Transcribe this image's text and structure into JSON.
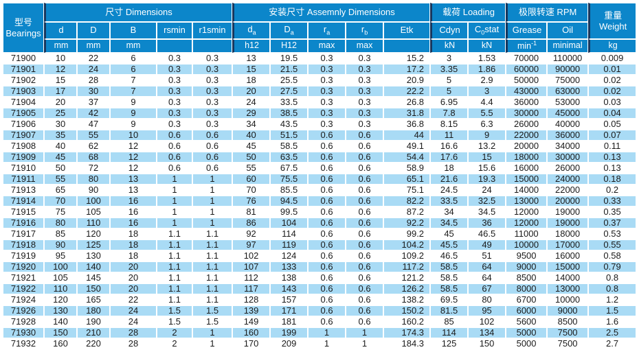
{
  "colors": {
    "header_blue": "#0c86ca",
    "row_alt_blue": "#a9dbf5",
    "section_divider": "#17375e",
    "text_color": "#1a1a1a"
  },
  "header": {
    "bearings_group": {
      "zh": "型号",
      "en": "Bearings"
    },
    "groups": {
      "dimensions": "尺寸 Dimensions",
      "assembly": "安装尺寸 Assemnly Dimensions",
      "loading": "载荷 Loading",
      "rpm": "极限转速 RPM",
      "weight_zh": "重量",
      "weight_en": "Weight"
    },
    "columns": [
      {
        "key": "d",
        "label": "d",
        "unit": "mm"
      },
      {
        "key": "D",
        "label": "D",
        "unit": "mm"
      },
      {
        "key": "B",
        "label": "B",
        "unit": "mm"
      },
      {
        "key": "rsmin",
        "label": "rsmin",
        "unit": ""
      },
      {
        "key": "r1smin",
        "label": "r1smin",
        "unit": ""
      },
      {
        "key": "da",
        "label": "d_{a}",
        "unit": "h12"
      },
      {
        "key": "Da",
        "label": "D_{a}",
        "unit": "H12"
      },
      {
        "key": "ra",
        "label": "r_{a}",
        "unit": "max"
      },
      {
        "key": "rb",
        "label": "r_{b}",
        "unit": "max"
      },
      {
        "key": "Etk",
        "label": "Etk",
        "unit": ""
      },
      {
        "key": "Cdyn",
        "label": "Cdyn",
        "unit": "kN"
      },
      {
        "key": "C0stat",
        "label": "C_{0}stat",
        "unit": "kN"
      },
      {
        "key": "Grease",
        "label": "Grease",
        "unit": "min^{-1}"
      },
      {
        "key": "Oil",
        "label": "Oil",
        "unit": "minimal"
      },
      {
        "key": "Weight",
        "label": "",
        "unit": "kg"
      }
    ]
  },
  "table": {
    "rows": [
      [
        "71900",
        10,
        22,
        6,
        0.3,
        0.3,
        13,
        19.5,
        0.3,
        0.3,
        15.2,
        3,
        1.53,
        70000,
        110000,
        0.009
      ],
      [
        "71901",
        12,
        24,
        6,
        0.3,
        0.3,
        15,
        21.5,
        0.3,
        0.3,
        17.2,
        3.35,
        1.86,
        60000,
        90000,
        0.01
      ],
      [
        "71902",
        15,
        28,
        7,
        0.3,
        0.3,
        18,
        25.5,
        0.3,
        0.3,
        20.9,
        5,
        2.9,
        50000,
        75000,
        0.02
      ],
      [
        "71903",
        17,
        30,
        7,
        0.3,
        0.3,
        20,
        27.5,
        0.3,
        0.3,
        22.2,
        5,
        3,
        43000,
        63000,
        0.02
      ],
      [
        "71904",
        20,
        37,
        9,
        0.3,
        0.3,
        24,
        33.5,
        0.3,
        0.3,
        26.8,
        6.95,
        4.4,
        36000,
        53000,
        0.03
      ],
      [
        "71905",
        25,
        42,
        9,
        0.3,
        0.3,
        29,
        38.5,
        0.3,
        0.3,
        31.8,
        7.8,
        5.5,
        30000,
        45000,
        0.04
      ],
      [
        "71906",
        30,
        47,
        9,
        0.3,
        0.3,
        34,
        43.5,
        0.3,
        0.3,
        36.8,
        8.15,
        6.3,
        26000,
        40000,
        0.05
      ],
      [
        "71907",
        35,
        55,
        10,
        0.6,
        0.6,
        40,
        51.5,
        0.6,
        0.6,
        44,
        11,
        9,
        22000,
        36000,
        0.07
      ],
      [
        "71908",
        40,
        62,
        12,
        0.6,
        0.6,
        45,
        58.5,
        0.6,
        0.6,
        49.1,
        16.6,
        13.2,
        20000,
        34000,
        0.11
      ],
      [
        "71909",
        45,
        68,
        12,
        0.6,
        0.6,
        50,
        63.5,
        0.6,
        0.6,
        54.4,
        17.6,
        15,
        18000,
        30000,
        0.13
      ],
      [
        "71910",
        50,
        72,
        12,
        0.6,
        0.6,
        55,
        67.5,
        0.6,
        0.6,
        58.9,
        18,
        15.6,
        16000,
        26000,
        0.13
      ],
      [
        "71911",
        55,
        80,
        13,
        1,
        1,
        60,
        75.5,
        0.6,
        0.6,
        65.1,
        21.6,
        19.3,
        15000,
        24000,
        0.18
      ],
      [
        "71913",
        65,
        90,
        13,
        1,
        1,
        70,
        85.5,
        0.6,
        0.6,
        75.1,
        24.5,
        24,
        14000,
        22000,
        0.2
      ],
      [
        "71914",
        70,
        100,
        16,
        1,
        1,
        76,
        94.5,
        0.6,
        0.6,
        82.2,
        33.5,
        32.5,
        13000,
        20000,
        0.33
      ],
      [
        "71915",
        75,
        105,
        16,
        1,
        1,
        81,
        99.5,
        0.6,
        0.6,
        87.2,
        34,
        34.5,
        12000,
        19000,
        0.35
      ],
      [
        "71916",
        80,
        110,
        16,
        1,
        1,
        86,
        104,
        0.6,
        0.6,
        92.2,
        34.5,
        36,
        12000,
        19000,
        0.37
      ],
      [
        "71917",
        85,
        120,
        18,
        1.1,
        1.1,
        92,
        114,
        0.6,
        0.6,
        99.2,
        45,
        46.5,
        11000,
        18000,
        0.53
      ],
      [
        "71918",
        90,
        125,
        18,
        1.1,
        1.1,
        97,
        119,
        0.6,
        0.6,
        104.2,
        45.5,
        49,
        10000,
        17000,
        0.55
      ],
      [
        "71919",
        95,
        130,
        18,
        1.1,
        1.1,
        102,
        124,
        0.6,
        0.6,
        109.2,
        46.5,
        51,
        9500,
        16000,
        0.58
      ],
      [
        "71920",
        100,
        140,
        20,
        1.1,
        1.1,
        107,
        133,
        0.6,
        0.6,
        117.2,
        58.5,
        64,
        9000,
        15000,
        0.79
      ],
      [
        "71921",
        105,
        145,
        20,
        1.1,
        1.1,
        112,
        138,
        0.6,
        0.6,
        121.2,
        58.5,
        64,
        8500,
        14000,
        0.8
      ],
      [
        "71922",
        110,
        150,
        20,
        1.1,
        1.1,
        117,
        143,
        0.6,
        0.6,
        126.2,
        58.5,
        67,
        8000,
        13000,
        0.8
      ],
      [
        "71924",
        120,
        165,
        22,
        1.1,
        1.1,
        128,
        157,
        0.6,
        0.6,
        138.2,
        69.5,
        80,
        6700,
        10000,
        1.2
      ],
      [
        "71926",
        130,
        180,
        24,
        1.5,
        1.5,
        139,
        171,
        0.6,
        0.6,
        150.2,
        81.5,
        95,
        6000,
        9000,
        1.5
      ],
      [
        "71928",
        140,
        190,
        24,
        1.5,
        1.5,
        149,
        181,
        0.6,
        0.6,
        160.2,
        85,
        102,
        5600,
        8500,
        1.6
      ],
      [
        "71930",
        150,
        210,
        28,
        2,
        1,
        160,
        199,
        1,
        1,
        174.3,
        114,
        134,
        5000,
        7500,
        2.5
      ],
      [
        "71932",
        160,
        220,
        28,
        2,
        1,
        170,
        209,
        1,
        1,
        184.3,
        125,
        150,
        5000,
        7500,
        2.7
      ]
    ]
  }
}
